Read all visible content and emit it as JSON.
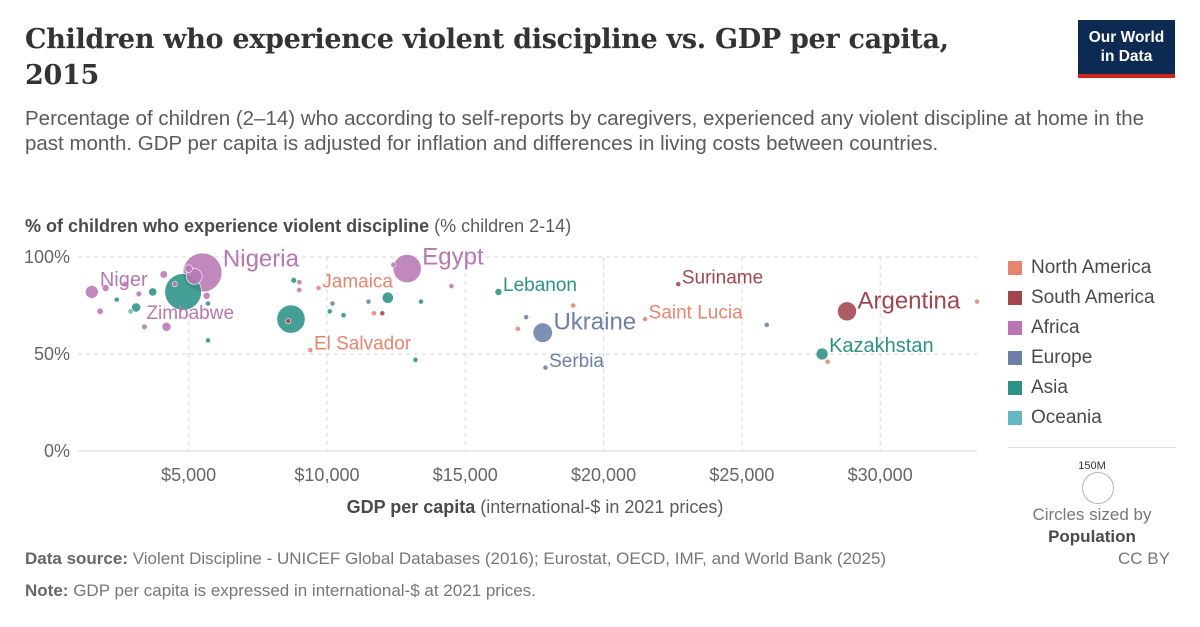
{
  "header": {
    "title": "Children who experience violent discipline vs. GDP per capita, 2015",
    "subtitle": "Percentage of children (2–14) who according to self-reports by caregivers, experienced any violent discipline at home in the past month. GDP per capita is adjusted for inflation and differences in living costs between countries.",
    "logo_line1": "Our World",
    "logo_line2": "in Data"
  },
  "footer": {
    "source_label": "Data source:",
    "source_text": "Violent Discipline - UNICEF Global Databases (2016); Eurostat, OECD, IMF, and World Bank (2025)",
    "license": "CC BY",
    "note_label": "Note:",
    "note_text": "GDP per capita is expressed in international-$ at 2021 prices."
  },
  "size_legend": {
    "circle_label": "150M",
    "caption_line1": "Circles sized by",
    "caption_line2": "Population"
  },
  "chart_data": {
    "type": "scatter",
    "title": "Children who experience violent discipline vs. GDP per capita, 2015",
    "ylabel_bold": "% of children who experience violent discipline",
    "ylabel_unit": "(% children 2-14)",
    "xlabel_bold": "GDP per capita",
    "xlabel_unit": "(international-$ in 2021 prices)",
    "xlim": [
      1000,
      33500
    ],
    "ylim": [
      0,
      100
    ],
    "xticks": [
      5000,
      10000,
      15000,
      20000,
      25000,
      30000
    ],
    "xtick_labels": [
      "$5,000",
      "$10,000",
      "$15,000",
      "$20,000",
      "$25,000",
      "$30,000"
    ],
    "yticks": [
      0,
      50,
      100
    ],
    "ytick_labels": [
      "0%",
      "50%",
      "100%"
    ],
    "grid": "dashed horizontal and vertical",
    "legend_position": "right",
    "regions": [
      {
        "name": "North America",
        "color": "#e6846f"
      },
      {
        "name": "South America",
        "color": "#a2464d"
      },
      {
        "name": "Africa",
        "color": "#b877b4"
      },
      {
        "name": "Europe",
        "color": "#6b7fa8"
      },
      {
        "name": "Asia",
        "color": "#2b9285"
      },
      {
        "name": "Oceania",
        "color": "#62b8c3"
      }
    ],
    "points": [
      {
        "x": 1500,
        "y": 82,
        "pop": 20,
        "region": "Africa",
        "label": "Niger"
      },
      {
        "x": 1800,
        "y": 72,
        "pop": 5,
        "region": "Africa"
      },
      {
        "x": 2000,
        "y": 84,
        "pop": 6,
        "region": "Africa"
      },
      {
        "x": 2400,
        "y": 78,
        "pop": 2,
        "region": "Asia"
      },
      {
        "x": 2700,
        "y": 86,
        "pop": 4,
        "region": "Africa"
      },
      {
        "x": 2900,
        "y": 72,
        "pop": 2,
        "region": "Oceania"
      },
      {
        "x": 3100,
        "y": 74,
        "pop": 10,
        "region": "Asia"
      },
      {
        "x": 3200,
        "y": 81,
        "pop": 4,
        "region": "Africa"
      },
      {
        "x": 3400,
        "y": 64,
        "pop": 4,
        "region": "Africa",
        "label": "Zimbabwe"
      },
      {
        "x": 3700,
        "y": 82,
        "pop": 8,
        "region": "Asia"
      },
      {
        "x": 4100,
        "y": 91,
        "pop": 7,
        "region": "Africa"
      },
      {
        "x": 4200,
        "y": 64,
        "pop": 10,
        "region": "Africa"
      },
      {
        "x": 4500,
        "y": 86,
        "pop": 3,
        "region": "Africa"
      },
      {
        "x": 4800,
        "y": 82,
        "pop": 160,
        "region": "Asia"
      },
      {
        "x": 5000,
        "y": 94,
        "pop": 7,
        "region": "Africa"
      },
      {
        "x": 5200,
        "y": 90,
        "pop": 30,
        "region": "Africa"
      },
      {
        "x": 5500,
        "y": 92,
        "pop": 180,
        "region": "Africa",
        "label": "Nigeria"
      },
      {
        "x": 5650,
        "y": 80,
        "pop": 6,
        "region": "Africa"
      },
      {
        "x": 5700,
        "y": 76,
        "pop": 2,
        "region": "Asia"
      },
      {
        "x": 5700,
        "y": 57,
        "pop": 1,
        "region": "Asia"
      },
      {
        "x": 8600,
        "y": 67,
        "pop": 3,
        "region": "South America"
      },
      {
        "x": 8700,
        "y": 68,
        "pop": 95,
        "region": "Asia"
      },
      {
        "x": 8800,
        "y": 88,
        "pop": 4,
        "region": "Asia"
      },
      {
        "x": 9000,
        "y": 83,
        "pop": 1,
        "region": "Africa"
      },
      {
        "x": 9000,
        "y": 87,
        "pop": 1,
        "region": "Africa"
      },
      {
        "x": 9400,
        "y": 52,
        "pop": 1,
        "region": "North America",
        "label": "El Salvador"
      },
      {
        "x": 9700,
        "y": 84,
        "pop": 0.5,
        "region": "North America",
        "label": "Jamaica"
      },
      {
        "x": 10100,
        "y": 72,
        "pop": 1,
        "region": "Asia"
      },
      {
        "x": 10200,
        "y": 76,
        "pop": 0.8,
        "region": "Europe"
      },
      {
        "x": 10600,
        "y": 70,
        "pop": 0.5,
        "region": "Asia"
      },
      {
        "x": 11500,
        "y": 77,
        "pop": 2,
        "region": "Europe"
      },
      {
        "x": 11700,
        "y": 71,
        "pop": 1,
        "region": "North America"
      },
      {
        "x": 12000,
        "y": 71,
        "pop": 0.8,
        "region": "South America"
      },
      {
        "x": 12200,
        "y": 79,
        "pop": 15,
        "region": "Asia"
      },
      {
        "x": 12400,
        "y": 96,
        "pop": 3,
        "region": "Africa"
      },
      {
        "x": 12900,
        "y": 94,
        "pop": 95,
        "region": "Africa",
        "label": "Egypt"
      },
      {
        "x": 13200,
        "y": 47,
        "pop": 0.5,
        "region": "Asia"
      },
      {
        "x": 13400,
        "y": 77,
        "pop": 0.8,
        "region": "Asia"
      },
      {
        "x": 14500,
        "y": 85,
        "pop": 3,
        "region": "Africa"
      },
      {
        "x": 16200,
        "y": 82,
        "pop": 6,
        "region": "Asia",
        "label": "Lebanon"
      },
      {
        "x": 16900,
        "y": 63,
        "pop": 3,
        "region": "North America"
      },
      {
        "x": 17200,
        "y": 69,
        "pop": 0.5,
        "region": "Europe"
      },
      {
        "x": 17800,
        "y": 61,
        "pop": 45,
        "region": "Europe",
        "label": "Ukraine"
      },
      {
        "x": 17900,
        "y": 43,
        "pop": 2,
        "region": "Europe",
        "label": "Serbia"
      },
      {
        "x": 18900,
        "y": 75,
        "pop": 0.2,
        "region": "North America"
      },
      {
        "x": 21500,
        "y": 68,
        "pop": 0.2,
        "region": "North America",
        "label": "Saint Lucia"
      },
      {
        "x": 22700,
        "y": 86,
        "pop": 0.5,
        "region": "South America",
        "label": "Suriname"
      },
      {
        "x": 25900,
        "y": 65,
        "pop": 2,
        "region": "Europe"
      },
      {
        "x": 27900,
        "y": 50,
        "pop": 17,
        "region": "Asia",
        "label": "Kazakhstan"
      },
      {
        "x": 28100,
        "y": 46,
        "pop": 0.5,
        "region": "North America"
      },
      {
        "x": 28800,
        "y": 72,
        "pop": 43,
        "region": "South America",
        "label": "Argentina"
      },
      {
        "x": 33500,
        "y": 77,
        "pop": 0.3,
        "region": "North America"
      }
    ]
  }
}
